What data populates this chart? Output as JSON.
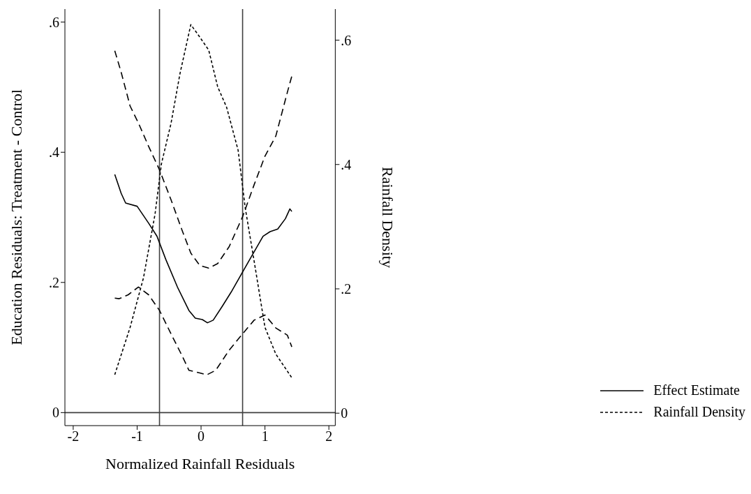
{
  "chart_data": {
    "type": "line",
    "xlabel": "Normalized Rainfall Residuals",
    "ylabel": "Education Residuals: Treatment - Control",
    "y2label": "Rainfall Density",
    "xlim": [
      -2.13,
      2.1
    ],
    "xticks": [
      -2,
      -1,
      0,
      1,
      2
    ],
    "ylim": [
      -0.02,
      0.62
    ],
    "yticks": [
      0,
      {
        "value": 0.2,
        "label": ".2"
      },
      {
        "value": 0.4,
        "label": ".4"
      },
      {
        "value": 0.6,
        "label": ".6"
      }
    ],
    "y2lim": [
      -0.02,
      0.65
    ],
    "y2ticks": [
      0,
      {
        "value": 0.2,
        "label": ".2"
      },
      {
        "value": 0.4,
        "label": ".4"
      },
      {
        "value": 0.6,
        "label": ".6"
      }
    ],
    "legend": "bottom right",
    "marker": "none",
    "ref_lines": [
      {
        "axis": "x",
        "value": -0.65,
        "color": "#404040"
      },
      {
        "axis": "x",
        "value": 0.65,
        "color": "#404040"
      },
      {
        "axis": "y",
        "value": 0,
        "color": "#404040"
      }
    ],
    "series": [
      {
        "name": "Effect Estimate",
        "color": "#000000",
        "line_style": "solid",
        "x": [
          -1.35,
          -1.25,
          -1.18,
          -1.0,
          -0.82,
          -0.69,
          -0.55,
          -0.37,
          -0.19,
          -0.09,
          0.02,
          0.1,
          0.19,
          0.33,
          0.47,
          0.65,
          0.79,
          0.97,
          1.08,
          1.2,
          1.32,
          1.39,
          1.42
        ],
        "values": [
          0.366,
          0.337,
          0.322,
          0.317,
          0.291,
          0.271,
          0.235,
          0.193,
          0.157,
          0.145,
          0.143,
          0.138,
          0.142,
          0.163,
          0.185,
          0.216,
          0.24,
          0.271,
          0.278,
          0.282,
          0.298,
          0.313,
          0.309
        ]
      },
      {
        "color": "#000000",
        "line_style": "dashed",
        "x": [
          -1.35,
          -1.25,
          -1.11,
          -0.98,
          -0.82,
          -0.65,
          -0.47,
          -0.3,
          -0.16,
          -0.02,
          0.12,
          0.26,
          0.44,
          0.65,
          0.83,
          1.0,
          1.17,
          1.35,
          1.42
        ],
        "values": [
          0.556,
          0.523,
          0.471,
          0.445,
          0.409,
          0.373,
          0.327,
          0.281,
          0.245,
          0.226,
          0.222,
          0.229,
          0.255,
          0.301,
          0.35,
          0.394,
          0.425,
          0.492,
          0.517
        ]
      },
      {
        "color": "#000000",
        "line_style": "dashed",
        "x": [
          -1.35,
          -1.28,
          -1.14,
          -0.98,
          -0.82,
          -0.65,
          -0.47,
          -0.3,
          -0.19,
          -0.02,
          0.09,
          0.23,
          0.44,
          0.65,
          0.83,
          1.0,
          1.17,
          1.35,
          1.42
        ],
        "values": [
          0.176,
          0.175,
          0.181,
          0.193,
          0.181,
          0.157,
          0.121,
          0.088,
          0.065,
          0.061,
          0.058,
          0.065,
          0.096,
          0.121,
          0.142,
          0.15,
          0.13,
          0.119,
          0.101
        ]
      },
      {
        "name": "Rainfall Density",
        "color": "#000000",
        "line_style": "dotted",
        "axis": "y2",
        "x": [
          -1.35,
          -1.11,
          -0.9,
          -0.72,
          -0.62,
          -0.47,
          -0.33,
          -0.16,
          -0.02,
          0.12,
          0.26,
          0.4,
          0.58,
          0.69,
          0.83,
          1.0,
          1.17,
          1.42
        ],
        "values": [
          0.062,
          0.138,
          0.218,
          0.32,
          0.401,
          0.466,
          0.546,
          0.625,
          0.605,
          0.584,
          0.525,
          0.492,
          0.423,
          0.331,
          0.245,
          0.138,
          0.095,
          0.057
        ]
      }
    ]
  }
}
